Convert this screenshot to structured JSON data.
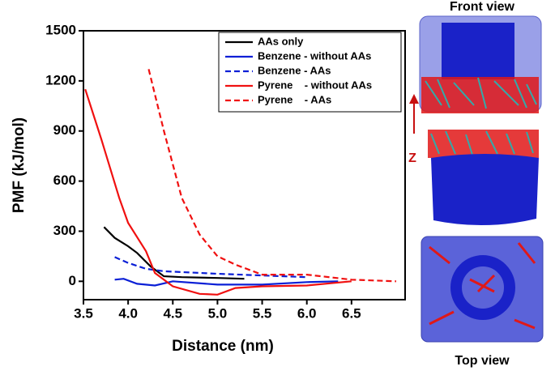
{
  "chart_data": {
    "type": "line",
    "xlabel": "Distance (nm)",
    "ylabel": "PMF (kJ/mol)",
    "xlim": [
      3.5,
      7.1
    ],
    "ylim": [
      -110,
      1500
    ],
    "xticks": [
      3.5,
      {
        "value": 4,
        "label": "4.0"
      },
      4.5,
      {
        "value": 5,
        "label": "5.0"
      },
      5.5,
      {
        "value": 6,
        "label": "6.0"
      },
      6.5
    ],
    "yticks": [
      0,
      300,
      600,
      900,
      1200,
      1500
    ],
    "legend": "upper right",
    "series": [
      {
        "name": "AAs only",
        "color": "#000000",
        "dash": false,
        "x": [
          3.73,
          3.85,
          4.0,
          4.1,
          4.25,
          4.4,
          4.6,
          5.0,
          5.3
        ],
        "values": [
          325,
          260,
          210,
          170,
          90,
          30,
          25,
          20,
          15
        ]
      },
      {
        "name": "Benzene - without AAs",
        "color": "#0a1fd6",
        "dash": false,
        "x": [
          3.85,
          3.95,
          4.1,
          4.3,
          4.5,
          5.0,
          5.5,
          6.0,
          6.35
        ],
        "values": [
          10,
          15,
          -15,
          -25,
          0,
          -20,
          -20,
          -5,
          0
        ]
      },
      {
        "name": "Benzene - AAs",
        "color": "#0a1fd6",
        "dash": true,
        "x": [
          3.85,
          4.0,
          4.2,
          4.4,
          5.0,
          5.5,
          6.0
        ],
        "values": [
          145,
          110,
          75,
          60,
          45,
          35,
          25
        ]
      },
      {
        "name": "Pyrene    - without AAs",
        "color": "#f01010",
        "dash": false,
        "x": [
          3.52,
          3.7,
          3.9,
          4.0,
          4.2,
          4.3,
          4.5,
          4.8,
          5.0,
          5.2,
          5.5,
          6.0,
          6.5
        ],
        "values": [
          1150,
          850,
          500,
          350,
          180,
          50,
          -30,
          -75,
          -80,
          -40,
          -30,
          -25,
          0
        ]
      },
      {
        "name": "Pyrene    - AAs",
        "color": "#f01010",
        "dash": true,
        "x": [
          4.23,
          4.4,
          4.6,
          4.8,
          5.0,
          5.2,
          5.5,
          6.0,
          6.5,
          7.0
        ],
        "values": [
          1270,
          900,
          500,
          280,
          150,
          100,
          40,
          40,
          10,
          0
        ]
      }
    ]
  },
  "panels": {
    "front_label": "Front view",
    "axis_label": "Z",
    "top_label": "Top view"
  }
}
